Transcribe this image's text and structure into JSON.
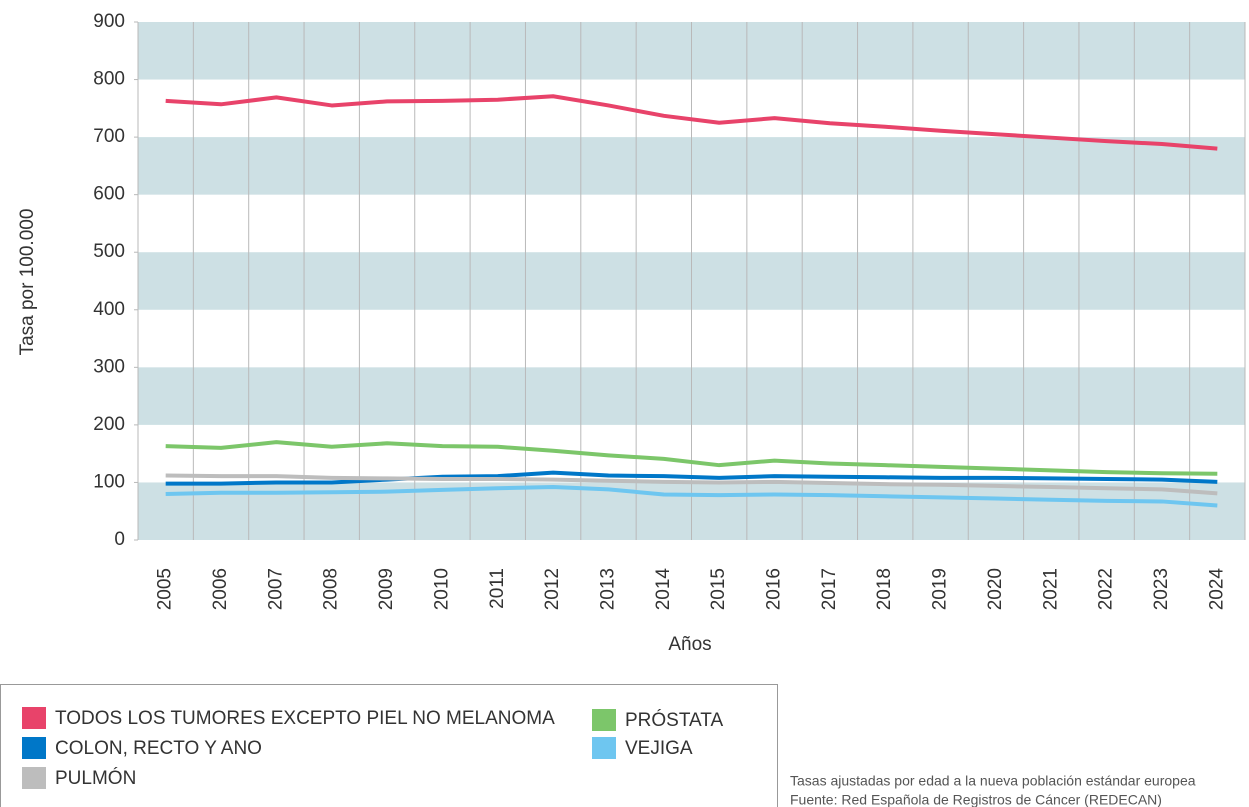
{
  "chart_data": {
    "type": "line",
    "x_label": "Años",
    "y_label": "Tasa por 100.000",
    "categories": [
      "2005",
      "2006",
      "2007",
      "2008",
      "2009",
      "2010",
      "2011",
      "2012",
      "2013",
      "2014",
      "2015",
      "2016",
      "2017",
      "2018",
      "2019",
      "2020",
      "2021",
      "2022",
      "2023",
      "2024"
    ],
    "series": [
      {
        "name": "TODOS LOS TUMORES EXCEPTO PIEL NO MELANOMA",
        "color": "#e8436a",
        "values": [
          763,
          757,
          769,
          755,
          762,
          763,
          765,
          771,
          755,
          737,
          725,
          733,
          724,
          718,
          711,
          705,
          699,
          693,
          688,
          680
        ]
      },
      {
        "name": "COLON, RECTO Y ANO",
        "color": "#0077c8",
        "values": [
          98,
          98,
          100,
          100,
          105,
          110,
          111,
          117,
          112,
          111,
          108,
          111,
          110,
          109,
          108,
          108,
          107,
          106,
          105,
          101
        ]
      },
      {
        "name": "PULMÓN",
        "color": "#bdbdbd",
        "values": [
          112,
          111,
          111,
          108,
          107,
          106,
          106,
          105,
          103,
          101,
          100,
          101,
          99,
          97,
          96,
          94,
          92,
          90,
          88,
          81
        ]
      },
      {
        "name": "PRÓSTATA",
        "color": "#7cc66a",
        "values": [
          163,
          160,
          170,
          162,
          168,
          163,
          162,
          155,
          147,
          141,
          130,
          138,
          133,
          130,
          127,
          124,
          121,
          118,
          116,
          115
        ]
      },
      {
        "name": "VEJIGA",
        "color": "#6ec6f0",
        "values": [
          80,
          82,
          82,
          83,
          84,
          87,
          90,
          92,
          88,
          79,
          78,
          79,
          78,
          76,
          74,
          72,
          70,
          68,
          67,
          60
        ]
      }
    ],
    "ylim": [
      0,
      900
    ],
    "yticks": [
      0,
      100,
      200,
      300,
      400,
      500,
      600,
      700,
      800,
      900
    ],
    "grid": true,
    "notes": [
      "Tasas ajustadas por edad a la nueva población estándar europea",
      "Fuente: Red Española de Registros de Cáncer (REDECAN)"
    ]
  }
}
